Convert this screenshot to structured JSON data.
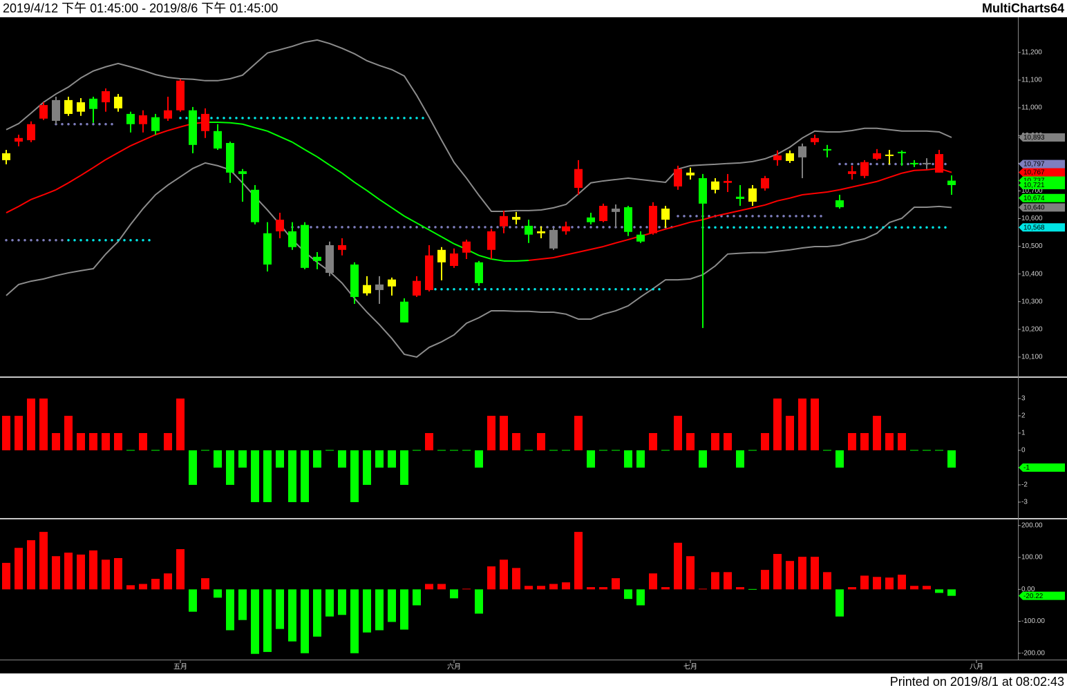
{
  "header": {
    "range": "2019/4/12 下午 01:45:00 - 2019/8/6 下午 01:45:00",
    "brand": "MultiCharts64"
  },
  "footer": "Printed on 2019/8/1 at 08:02:43",
  "chart_data": [
    {
      "type": "candlestick",
      "categories": [
        null,
        null,
        null,
        null,
        null,
        null,
        null,
        null,
        null,
        null,
        null,
        null,
        null,
        null,
        "五月",
        null,
        null,
        null,
        null,
        null,
        null,
        null,
        null,
        null,
        null,
        null,
        null,
        null,
        null,
        null,
        null,
        null,
        null,
        null,
        null,
        null,
        "六月",
        null,
        null,
        null,
        null,
        null,
        null,
        null,
        null,
        null,
        null,
        null,
        null,
        null,
        null,
        null,
        null,
        null,
        null,
        "七月",
        null,
        null,
        null,
        null,
        null,
        null,
        null,
        null,
        null,
        null,
        null,
        null,
        null,
        null,
        null,
        null,
        null,
        null,
        null,
        null,
        null,
        null,
        "八月"
      ],
      "open": [
        10836,
        10878,
        10883,
        10961,
        11028,
        11028,
        11020,
        11033,
        11020,
        11040,
        10978,
        10941,
        10966,
        10961,
        10991,
        10991,
        10916,
        10916,
        10873,
        10771,
        10704,
        10547,
        10554,
        10554,
        10577,
        10462,
        10504,
        10487,
        10434,
        10360,
        10362,
        10380,
        10300,
        10322,
        10342,
        10487,
        10429,
        10477,
        10442,
        10487,
        10572,
        10606,
        10574,
        10554,
        10559,
        10554,
        10711,
        10604,
        10591,
        10636,
        10641,
        10542,
        10547,
        10636,
        10716,
        10766,
        10746,
        10734,
        10729,
        10679,
        10709,
        10709,
        10811,
        10836,
        10861,
        10876,
        10851,
        10666,
        10761,
        10754,
        10816,
        10831,
        10841,
        10801,
        10801,
        10766,
        10737,
        null,
        null
      ],
      "high": [
        10848,
        10903,
        10951,
        11020,
        11040,
        11040,
        11035,
        11040,
        11070,
        11050,
        10986,
        10991,
        10978,
        11040,
        11103,
        11003,
        10998,
        10941,
        10878,
        10779,
        10721,
        10587,
        10621,
        10587,
        10587,
        10479,
        10517,
        10529,
        10442,
        10392,
        10392,
        10387,
        10312,
        10392,
        10504,
        10497,
        10492,
        10524,
        10447,
        10562,
        10629,
        10624,
        10596,
        10572,
        10567,
        10589,
        10811,
        10621,
        10654,
        10651,
        10646,
        10554,
        10659,
        10646,
        10791,
        10784,
        10761,
        10746,
        10761,
        10721,
        10721,
        10754,
        10846,
        10846,
        10871,
        10903,
        10866,
        10686,
        10791,
        10811,
        10851,
        10848,
        10846,
        10811,
        10818,
        10848,
        10756,
        null,
        null
      ],
      "low": [
        10796,
        10861,
        10876,
        10956,
        10941,
        10971,
        10971,
        10946,
        10986,
        10986,
        10911,
        10911,
        10903,
        10953,
        10986,
        10836,
        10891,
        10848,
        10729,
        10661,
        10579,
        10409,
        10529,
        10487,
        10417,
        10417,
        10392,
        10467,
        10292,
        10322,
        10292,
        10322,
        10225,
        10317,
        10337,
        10377,
        10422,
        10454,
        10357,
        10454,
        10547,
        10579,
        10512,
        10529,
        10487,
        10542,
        10686,
        10579,
        10587,
        10567,
        10537,
        10512,
        10542,
        10567,
        10704,
        10741,
        10205,
        10691,
        10696,
        10646,
        10646,
        10701,
        10791,
        10801,
        10746,
        10866,
        10821,
        10636,
        10741,
        10746,
        10811,
        10796,
        10791,
        10786,
        10779,
        10766,
        10686,
        null,
        null
      ],
      "close": [
        10811,
        10891,
        10941,
        11010,
        10953,
        10978,
        10986,
        10996,
        11060,
        10998,
        10941,
        10973,
        10916,
        10991,
        11098,
        10866,
        10978,
        10853,
        10766,
        10761,
        10587,
        10434,
        10596,
        10497,
        10422,
        10447,
        10404,
        10504,
        10317,
        10330,
        10342,
        10355,
        10225,
        10375,
        10467,
        10442,
        10474,
        10517,
        10367,
        10554,
        10609,
        10596,
        10542,
        10547,
        10492,
        10572,
        10779,
        10587,
        10646,
        10624,
        10552,
        10517,
        10646,
        10596,
        10779,
        10756,
        10654,
        10704,
        10736,
        10671,
        10661,
        10746,
        10828,
        10808,
        10821,
        10891,
        10846,
        10641,
        10771,
        10804,
        10836,
        10826,
        10836,
        10796,
        10796,
        10833,
        10721,
        null,
        null
      ],
      "colors": [
        "#ffff00",
        "#ff0000",
        "#ff0000",
        "#ff0000",
        "#808080",
        "#ffff00",
        "#ffff00",
        "#00ff00",
        "#ff0000",
        "#ffff00",
        "#00ff00",
        "#ff0000",
        "#00ff00",
        "#ff0000",
        "#ff0000",
        "#00ff00",
        "#ff0000",
        "#00ff00",
        "#00ff00",
        "#00ff00",
        "#00ff00",
        "#00ff00",
        "#ff0000",
        "#00ff00",
        "#00ff00",
        "#00ff00",
        "#808080",
        "#ff0000",
        "#00ff00",
        "#ffff00",
        "#808080",
        "#ffff00",
        "#00ff00",
        "#ff0000",
        "#ff0000",
        "#ffff00",
        "#ff0000",
        "#ff0000",
        "#00ff00",
        "#ff0000",
        "#ff0000",
        "#ffff00",
        "#00ff00",
        "#ffff00",
        "#808080",
        "#ff0000",
        "#ff0000",
        "#00ff00",
        "#ff0000",
        "#808080",
        "#00ff00",
        "#00ff00",
        "#ff0000",
        "#ffff00",
        "#ff0000",
        "#ffff00",
        "#00ff00",
        "#ffff00",
        "#ff0000",
        "#00ff00",
        "#ffff00",
        "#ff0000",
        "#ff0000",
        "#ffff00",
        "#808080",
        "#ff0000",
        "#00ff00",
        "#00ff00",
        "#ff0000",
        "#ff0000",
        "#ff0000",
        "#ffff00",
        "#00ff00",
        "#00ff00",
        "#808080",
        "#ff0000",
        "#00ff00",
        null,
        null
      ],
      "bands": {
        "color": "#8c8c8c",
        "upper": [
          10921,
          10943,
          10981,
          11020,
          11050,
          11075,
          11108,
          11133,
          11148,
          11160,
          11148,
          11135,
          11120,
          11110,
          11105,
          11103,
          11098,
          11098,
          11105,
          11118,
          11158,
          11198,
          11210,
          11222,
          11237,
          11245,
          11232,
          11215,
          11195,
          11170,
          11153,
          11138,
          11115,
          11045,
          10966,
          10883,
          10803,
          10746,
          10684,
          10626,
          10626,
          10629,
          10629,
          10631,
          10639,
          10651,
          10689,
          10729,
          10736,
          10741,
          10746,
          10741,
          10736,
          10731,
          10779,
          10791,
          10794,
          10796,
          10799,
          10801,
          10806,
          10816,
          10833,
          10858,
          10891,
          10916,
          10913,
          10913,
          10918,
          10926,
          10926,
          10921,
          10916,
          10916,
          10916,
          10913,
          10893,
          null,
          null
        ],
        "lower": [
          10322,
          10362,
          10374,
          10382,
          10394,
          10404,
          10412,
          10419,
          10472,
          10517,
          10579,
          10636,
          10686,
          10721,
          10751,
          10781,
          10801,
          10791,
          10776,
          10729,
          10679,
          10631,
          10579,
          10524,
          10479,
          10442,
          10409,
          10367,
          10312,
          10262,
          10217,
          10167,
          10110,
          10100,
          10135,
          10155,
          10180,
          10222,
          10242,
          10267,
          10267,
          10265,
          10265,
          10262,
          10262,
          10255,
          10237,
          10237,
          10255,
          10267,
          10285,
          10317,
          10347,
          10379,
          10379,
          10382,
          10397,
          10429,
          10472,
          10475,
          10477,
          10477,
          10482,
          10487,
          10494,
          10499,
          10499,
          10504,
          10517,
          10527,
          10547,
          10586,
          10601,
          10641,
          10641,
          10644,
          10640,
          null,
          null
        ]
      },
      "ma": {
        "values": [
          10621,
          10644,
          10669,
          10686,
          10704,
          10729,
          10756,
          10784,
          10813,
          10838,
          10863,
          10883,
          10903,
          10918,
          10931,
          10943,
          10948,
          10948,
          10946,
          10941,
          10928,
          10916,
          10896,
          10876,
          10849,
          10823,
          10793,
          10764,
          10731,
          10701,
          10669,
          10639,
          10609,
          10584,
          10559,
          10534,
          10509,
          10489,
          10467,
          10454,
          10447,
          10447,
          10449,
          10454,
          10459,
          10469,
          10479,
          10489,
          10499,
          10512,
          10524,
          10537,
          10549,
          10562,
          10574,
          10587,
          10596,
          10609,
          10619,
          10629,
          10639,
          10649,
          10664,
          10674,
          10686,
          10691,
          10696,
          10704,
          10714,
          10724,
          10734,
          10749,
          10764,
          10774,
          10776,
          10781,
          10767,
          null,
          null
        ],
        "colors": [
          "#ff0000",
          "#ff0000",
          "#ff0000",
          "#ff0000",
          "#ff0000",
          "#ff0000",
          "#ff0000",
          "#ff0000",
          "#ff0000",
          "#ff0000",
          "#ff0000",
          "#ff0000",
          "#ff0000",
          "#ff0000",
          "#ff0000",
          "#ff0000",
          "#ff0000",
          "#00ff00",
          "#00ff00",
          "#00ff00",
          "#00ff00",
          "#00ff00",
          "#00ff00",
          "#00ff00",
          "#00ff00",
          "#00ff00",
          "#00ff00",
          "#00ff00",
          "#00ff00",
          "#00ff00",
          "#00ff00",
          "#00ff00",
          "#00ff00",
          "#00ff00",
          "#00ff00",
          "#00ff00",
          "#00ff00",
          "#00ff00",
          "#00ff00",
          "#00ff00",
          "#00ff00",
          "#00ff00",
          "#00ff00",
          "#ff0000",
          "#ff0000",
          "#ff0000",
          "#ff0000",
          "#ff0000",
          "#ff0000",
          "#ff0000",
          "#ff0000",
          "#ff0000",
          "#ff0000",
          "#ff0000",
          "#ff0000",
          "#ff0000",
          "#ff0000",
          "#ff0000",
          "#ff0000",
          "#ff0000",
          "#ff0000",
          "#ff0000",
          "#ff0000",
          "#ff0000",
          "#ff0000",
          "#ff0000",
          "#ff0000",
          "#ff0000",
          "#ff0000",
          "#ff0000",
          "#ff0000",
          "#ff0000",
          "#ff0000",
          "#ff0000",
          "#ff0000",
          "#ff0000",
          "#ff0000",
          null,
          null
        ]
      },
      "levels": [
        {
          "value": 10941,
          "from": 4,
          "to": 9,
          "color": "#7f7fbf"
        },
        {
          "value": 10963,
          "from": 14,
          "to": 34,
          "color": "#00e5e5"
        },
        {
          "value": 10522,
          "from": 0,
          "to": 5,
          "color": "#7f7fbf"
        },
        {
          "value": 10522,
          "from": 5,
          "to": 12,
          "color": "#00e5e5"
        },
        {
          "value": 10569,
          "from": 23,
          "to": 54,
          "color": "#7f7fbf"
        },
        {
          "value": 10609,
          "from": 54,
          "to": 66,
          "color": "#7f7fbf"
        },
        {
          "value": 10345,
          "from": 34,
          "to": 53,
          "color": "#00e5e5"
        },
        {
          "value": 10568,
          "from": 56,
          "to": 76,
          "color": "#00e5e5"
        },
        {
          "value": 10797,
          "from": 67,
          "to": 76,
          "color": "#7f7fbf"
        }
      ],
      "ylim": [
        10030,
        11327
      ],
      "yticks": [
        {
          "value": 10100,
          "label": "10,100"
        },
        {
          "value": 10200,
          "label": "10,200"
        },
        {
          "value": 10300,
          "label": "10,300"
        },
        {
          "value": 10400,
          "label": "10,400"
        },
        {
          "value": 10500,
          "label": "10,500"
        },
        {
          "value": 10600,
          "label": "10,600"
        },
        {
          "value": 10700,
          "label": "10,700"
        },
        {
          "value": 10800,
          "label": "10,800"
        },
        {
          "value": 10900,
          "label": "10,900"
        },
        {
          "value": 11000,
          "label": "11,000"
        },
        {
          "value": 11100,
          "label": "11,100"
        },
        {
          "value": 11200,
          "label": "11,200"
        }
      ],
      "price_labels": [
        {
          "value": 10893,
          "label": "10,893",
          "color": "#808080"
        },
        {
          "value": 10797,
          "label": "10,797",
          "color": "#7f7fbf"
        },
        {
          "value": 10767,
          "label": "10,767",
          "color": "#ff0000"
        },
        {
          "value": 10737,
          "label": "10,737",
          "color": "#00ff00"
        },
        {
          "value": 10721,
          "label": "10,721",
          "color": "#00ff00"
        },
        {
          "value": 10674,
          "label": "10,674",
          "color": "#00ff00"
        },
        {
          "value": 10640,
          "label": "10,640",
          "color": "#808080"
        },
        {
          "value": 10568,
          "label": "10,568",
          "color": "#00e5e5"
        }
      ]
    },
    {
      "type": "bar",
      "up_color": "#ff0000",
      "down_color": "#00ff00",
      "values": [
        2,
        2,
        3,
        3,
        1,
        2,
        1,
        1,
        1,
        1,
        0,
        1,
        0,
        1,
        3,
        -2,
        0,
        -1,
        -2,
        -1,
        -3,
        -3,
        -1,
        -3,
        -3,
        -1,
        0,
        -1,
        -3,
        -2,
        -1,
        -1,
        -2,
        0,
        1,
        0,
        0,
        0,
        -1,
        2,
        2,
        1,
        0,
        1,
        0,
        0,
        2,
        -1,
        0,
        0,
        -1,
        -1,
        1,
        0,
        2,
        1,
        -1,
        1,
        1,
        -1,
        0,
        1,
        3,
        2,
        3,
        3,
        0,
        -1,
        1,
        1,
        2,
        1,
        1,
        0,
        0,
        0,
        -1
      ],
      "ylim": [
        -3.92,
        4.16
      ],
      "yticks": [
        3,
        2,
        1,
        0,
        -1,
        -2,
        -3
      ],
      "price_labels": [
        {
          "value": -1,
          "label": "-1",
          "color": "#00ff00"
        }
      ]
    },
    {
      "type": "bar",
      "up_color": "#ff0000",
      "down_color": "#00ff00",
      "values": [
        83,
        130,
        154,
        180,
        104,
        115,
        109,
        122,
        93,
        98,
        13,
        17,
        33,
        50,
        126,
        -70,
        35,
        -26,
        -128,
        -96,
        -202,
        -196,
        -124,
        -163,
        -200,
        -148,
        -85,
        -80,
        -200,
        -135,
        -128,
        -102,
        -126,
        -50,
        17,
        17,
        -28,
        2,
        -76,
        72,
        93,
        67,
        11,
        11,
        17,
        22,
        180,
        7,
        7,
        35,
        -30,
        -50,
        50,
        7,
        146,
        104,
        2,
        54,
        54,
        7,
        0,
        61,
        111,
        89,
        102,
        102,
        54,
        -85,
        7,
        43,
        39,
        37,
        46,
        11,
        11,
        -11,
        -20.22
      ],
      "ylim": [
        -220,
        217
      ],
      "yticks": [
        {
          "value": 200,
          "label": "200.00"
        },
        {
          "value": 100,
          "label": "100.00"
        },
        {
          "value": 0,
          "label": "0.00"
        },
        {
          "value": -100,
          "label": "-100.00"
        },
        {
          "value": -200,
          "label": "-200.00"
        }
      ],
      "price_labels": [
        {
          "value": -20.22,
          "label": "-20.22",
          "color": "#00ff00"
        }
      ]
    }
  ]
}
